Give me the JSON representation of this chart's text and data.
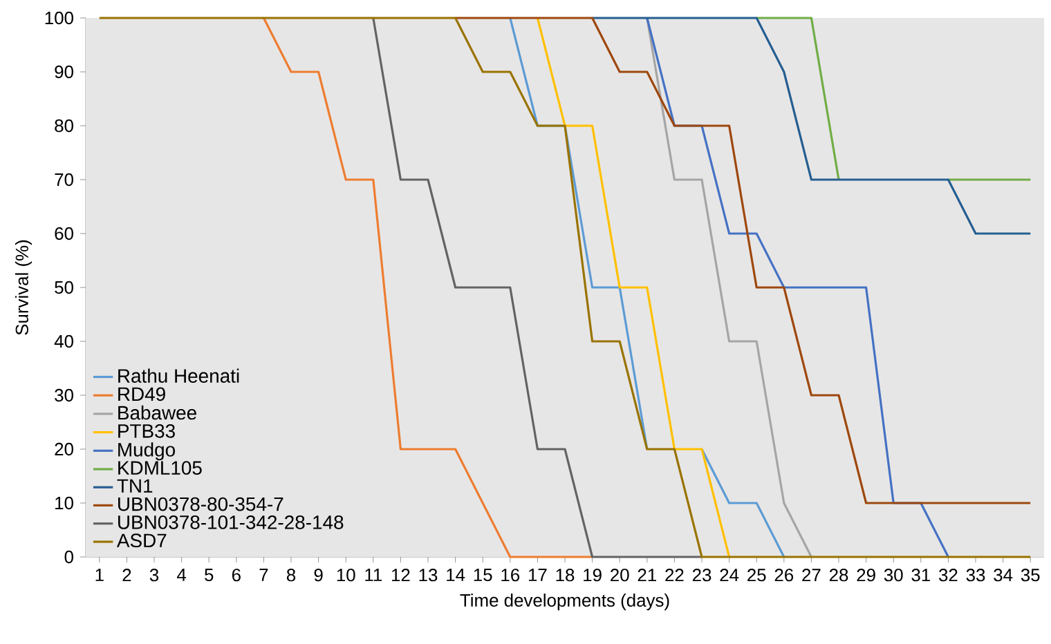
{
  "chart_data": {
    "type": "line",
    "xlabel": "Time developments (days)",
    "ylabel": "Survival (%)",
    "categories": [
      "1",
      "2",
      "3",
      "4",
      "5",
      "6",
      "7",
      "8",
      "9",
      "10",
      "11",
      "12",
      "13",
      "14",
      "15",
      "16",
      "17",
      "18",
      "19",
      "20",
      "21",
      "22",
      "23",
      "24",
      "25",
      "26",
      "27",
      "28",
      "29",
      "30",
      "31",
      "32",
      "33",
      "34",
      "35"
    ],
    "ylim": [
      0,
      100
    ],
    "yticks": [
      0,
      10,
      20,
      30,
      40,
      50,
      60,
      70,
      80,
      90,
      100
    ],
    "legend": "bottom left",
    "series": [
      {
        "name": "Rathu Heenati",
        "color": "#5b9bd5",
        "values": [
          null,
          null,
          null,
          null,
          null,
          null,
          null,
          null,
          null,
          null,
          null,
          null,
          null,
          null,
          null,
          100,
          80,
          80,
          50,
          50,
          20,
          null,
          20,
          10,
          10,
          0,
          null,
          null,
          null,
          null,
          null,
          null,
          null,
          null,
          null
        ]
      },
      {
        "name": "RD49",
        "color": "#ed7d31",
        "values": [
          null,
          null,
          null,
          null,
          null,
          null,
          100,
          90,
          90,
          70,
          70,
          20,
          20,
          20,
          10,
          0,
          0,
          0,
          0,
          null,
          null,
          null,
          null,
          null,
          null,
          null,
          null,
          null,
          null,
          null,
          null,
          null,
          null,
          null,
          null
        ]
      },
      {
        "name": "Babawee",
        "color": "#a5a5a5",
        "values": [
          null,
          null,
          null,
          null,
          null,
          null,
          null,
          null,
          null,
          null,
          null,
          null,
          null,
          null,
          null,
          null,
          null,
          null,
          null,
          null,
          100,
          70,
          70,
          40,
          40,
          10,
          0,
          null,
          null,
          null,
          null,
          null,
          null,
          null,
          null
        ]
      },
      {
        "name": "PTB33",
        "color": "#ffc000",
        "values": [
          null,
          null,
          null,
          null,
          null,
          null,
          null,
          null,
          null,
          null,
          null,
          null,
          null,
          null,
          null,
          null,
          100,
          80,
          80,
          50,
          50,
          20,
          20,
          0,
          null,
          null,
          null,
          null,
          null,
          null,
          null,
          null,
          null,
          null,
          null
        ]
      },
      {
        "name": "Mudgo",
        "color": "#4472c4",
        "values": [
          null,
          null,
          null,
          null,
          null,
          null,
          null,
          null,
          null,
          null,
          null,
          null,
          null,
          null,
          null,
          null,
          null,
          null,
          null,
          null,
          100,
          80,
          80,
          60,
          60,
          50,
          50,
          50,
          50,
          10,
          10,
          0,
          null,
          null,
          null
        ]
      },
      {
        "name": "KDML105",
        "color": "#70ad47",
        "values": [
          null,
          null,
          null,
          null,
          null,
          null,
          null,
          null,
          null,
          null,
          null,
          null,
          null,
          null,
          null,
          null,
          null,
          null,
          null,
          null,
          null,
          null,
          null,
          null,
          100,
          100,
          100,
          70,
          null,
          null,
          null,
          70,
          70,
          70,
          70
        ]
      },
      {
        "name": "TN1",
        "color": "#255e91",
        "values": [
          null,
          null,
          null,
          null,
          null,
          null,
          null,
          null,
          null,
          null,
          null,
          null,
          null,
          null,
          null,
          null,
          null,
          null,
          100,
          100,
          100,
          100,
          100,
          100,
          100,
          90,
          70,
          70,
          70,
          70,
          70,
          70,
          60,
          60,
          60
        ]
      },
      {
        "name": "UBN0378-80-354-7",
        "color": "#9e480e",
        "values": [
          null,
          null,
          null,
          null,
          null,
          null,
          null,
          null,
          null,
          null,
          null,
          null,
          null,
          100,
          100,
          100,
          100,
          100,
          100,
          90,
          90,
          80,
          80,
          80,
          50,
          50,
          30,
          30,
          10,
          10,
          10,
          10,
          10,
          10,
          10
        ]
      },
      {
        "name": "UBN0378-101-342-28-148",
        "color": "#636363",
        "values": [
          null,
          null,
          null,
          null,
          null,
          null,
          null,
          null,
          null,
          null,
          100,
          70,
          70,
          50,
          50,
          50,
          20,
          20,
          0,
          0,
          0,
          0,
          0,
          null,
          null,
          null,
          null,
          null,
          null,
          null,
          null,
          null,
          null,
          null,
          null
        ]
      },
      {
        "name": "ASD7",
        "color": "#997300",
        "values": [
          100,
          100,
          100,
          100,
          100,
          100,
          100,
          100,
          100,
          100,
          100,
          100,
          100,
          100,
          90,
          90,
          80,
          80,
          40,
          40,
          20,
          20,
          0,
          0,
          0,
          0,
          0,
          0,
          0,
          0,
          0,
          0,
          0,
          0,
          0
        ]
      }
    ]
  }
}
